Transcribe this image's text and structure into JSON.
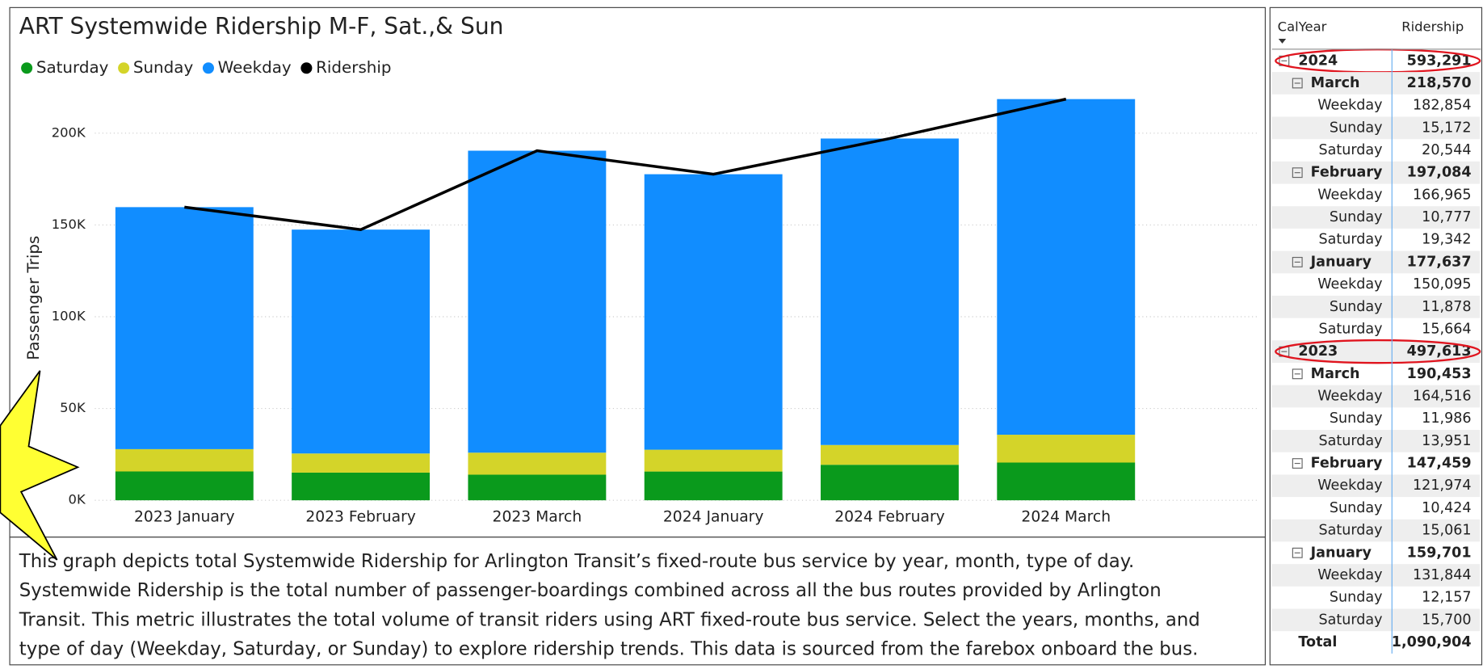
{
  "chart_data": {
    "type": "bar",
    "stacked": true,
    "title": "ART Systemwide Ridership M-F, Sat.,& Sun",
    "y_label": "Passenger Trips",
    "categories": [
      "2023 January",
      "2023 February",
      "2023 March",
      "2024 January",
      "2024 February",
      "2024 March"
    ],
    "series": [
      {
        "name": "Saturday",
        "color": "#0a9a1c",
        "values": [
          15700,
          15061,
          13951,
          15664,
          19342,
          20544
        ]
      },
      {
        "name": "Sunday",
        "color": "#d4d429",
        "values": [
          12157,
          10424,
          11986,
          11878,
          10777,
          15172
        ]
      },
      {
        "name": "Weekday",
        "color": "#118dff",
        "values": [
          131844,
          121974,
          164516,
          150095,
          166965,
          182854
        ]
      },
      {
        "name": "Ridership",
        "color": "#000000",
        "type": "line",
        "values": [
          159701,
          147459,
          190453,
          177637,
          197084,
          218570
        ]
      }
    ],
    "ylim": [
      0,
      220000
    ],
    "yticks": [
      {
        "value": 0,
        "label": "0K"
      },
      {
        "value": 50000,
        "label": "50K"
      },
      {
        "value": 100000,
        "label": "100K"
      },
      {
        "value": 150000,
        "label": "150K"
      },
      {
        "value": 200000,
        "label": "200K"
      }
    ],
    "grid": true,
    "legend": "top-left"
  },
  "description": [
    "This graph depicts total Systemwide Ridership for Arlington Transit’s fixed-route bus service by year, month, type of day.",
    "Systemwide Ridership is the total number of passenger-boardings combined across all the bus routes provided by Arlington",
    "Transit. This metric illustrates the total volume of transit riders using ART fixed-route bus service. Select  the years, months, and",
    "type of day (Weekday, Saturday, or Sunday) to explore ridership trends. This data is sourced from the farebox onboard the bus."
  ],
  "table": {
    "columns": [
      "CalYear",
      "Ridership"
    ],
    "rows": [
      [
        "2024",
        "593,291"
      ],
      [
        "March",
        "218,570"
      ],
      [
        "Weekday",
        "182,854"
      ],
      [
        "Sunday",
        "15,172"
      ],
      [
        "Saturday",
        "20,544"
      ],
      [
        "February",
        "197,084"
      ],
      [
        "Weekday",
        "166,965"
      ],
      [
        "Sunday",
        "10,777"
      ],
      [
        "Saturday",
        "19,342"
      ],
      [
        "January",
        "177,637"
      ],
      [
        "Weekday",
        "150,095"
      ],
      [
        "Sunday",
        "11,878"
      ],
      [
        "Saturday",
        "15,664"
      ],
      [
        "2023",
        "497,613"
      ],
      [
        "March",
        "190,453"
      ],
      [
        "Weekday",
        "164,516"
      ],
      [
        "Sunday",
        "11,986"
      ],
      [
        "Saturday",
        "13,951"
      ],
      [
        "February",
        "147,459"
      ],
      [
        "Weekday",
        "121,974"
      ],
      [
        "Sunday",
        "10,424"
      ],
      [
        "Saturday",
        "15,061"
      ],
      [
        "January",
        "159,701"
      ],
      [
        "Weekday",
        "131,844"
      ],
      [
        "Sunday",
        "12,157"
      ],
      [
        "Saturday",
        "15,700"
      ],
      [
        "Total",
        "1,090,904"
      ]
    ]
  }
}
